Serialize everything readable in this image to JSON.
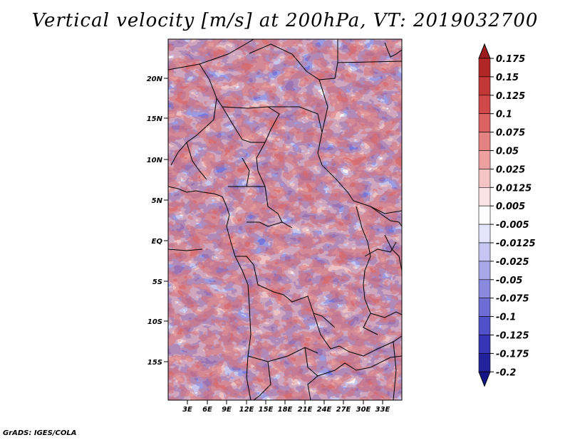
{
  "title": "Vertical velocity [m/s] at 200hPa, VT: 2019032700",
  "footer": "GrADS: IGES/COLA",
  "map": {
    "lon_range": [
      0,
      36
    ],
    "lat_range": [
      -20,
      24
    ],
    "x_ticks": [
      "3E",
      "6E",
      "9E",
      "12E",
      "15E",
      "18E",
      "21E",
      "24E",
      "27E",
      "30E",
      "33E"
    ],
    "y_ticks": [
      "20N",
      "15N",
      "10N",
      "5N",
      "EQ",
      "5S",
      "10S",
      "15S"
    ]
  },
  "colorbar": {
    "labels": [
      "0.175",
      "0.15",
      "0.125",
      "0.1",
      "0.075",
      "0.05",
      "0.025",
      "0.0125",
      "0.005",
      "-0.005",
      "-0.0125",
      "-0.025",
      "-0.05",
      "-0.075",
      "-0.1",
      "-0.125",
      "-0.175",
      "-0.2"
    ],
    "colors": [
      "#9b1c1c",
      "#b32626",
      "#c43737",
      "#d04848",
      "#dc6363",
      "#e48181",
      "#eda0a0",
      "#f4c3c3",
      "#fbe4e4",
      "#ffffff",
      "#e4e4fb",
      "#c6c6f2",
      "#a8a8eb",
      "#8989e0",
      "#6d6dd5",
      "#5050c8",
      "#3535b5",
      "#22229a",
      "#141488"
    ]
  }
}
